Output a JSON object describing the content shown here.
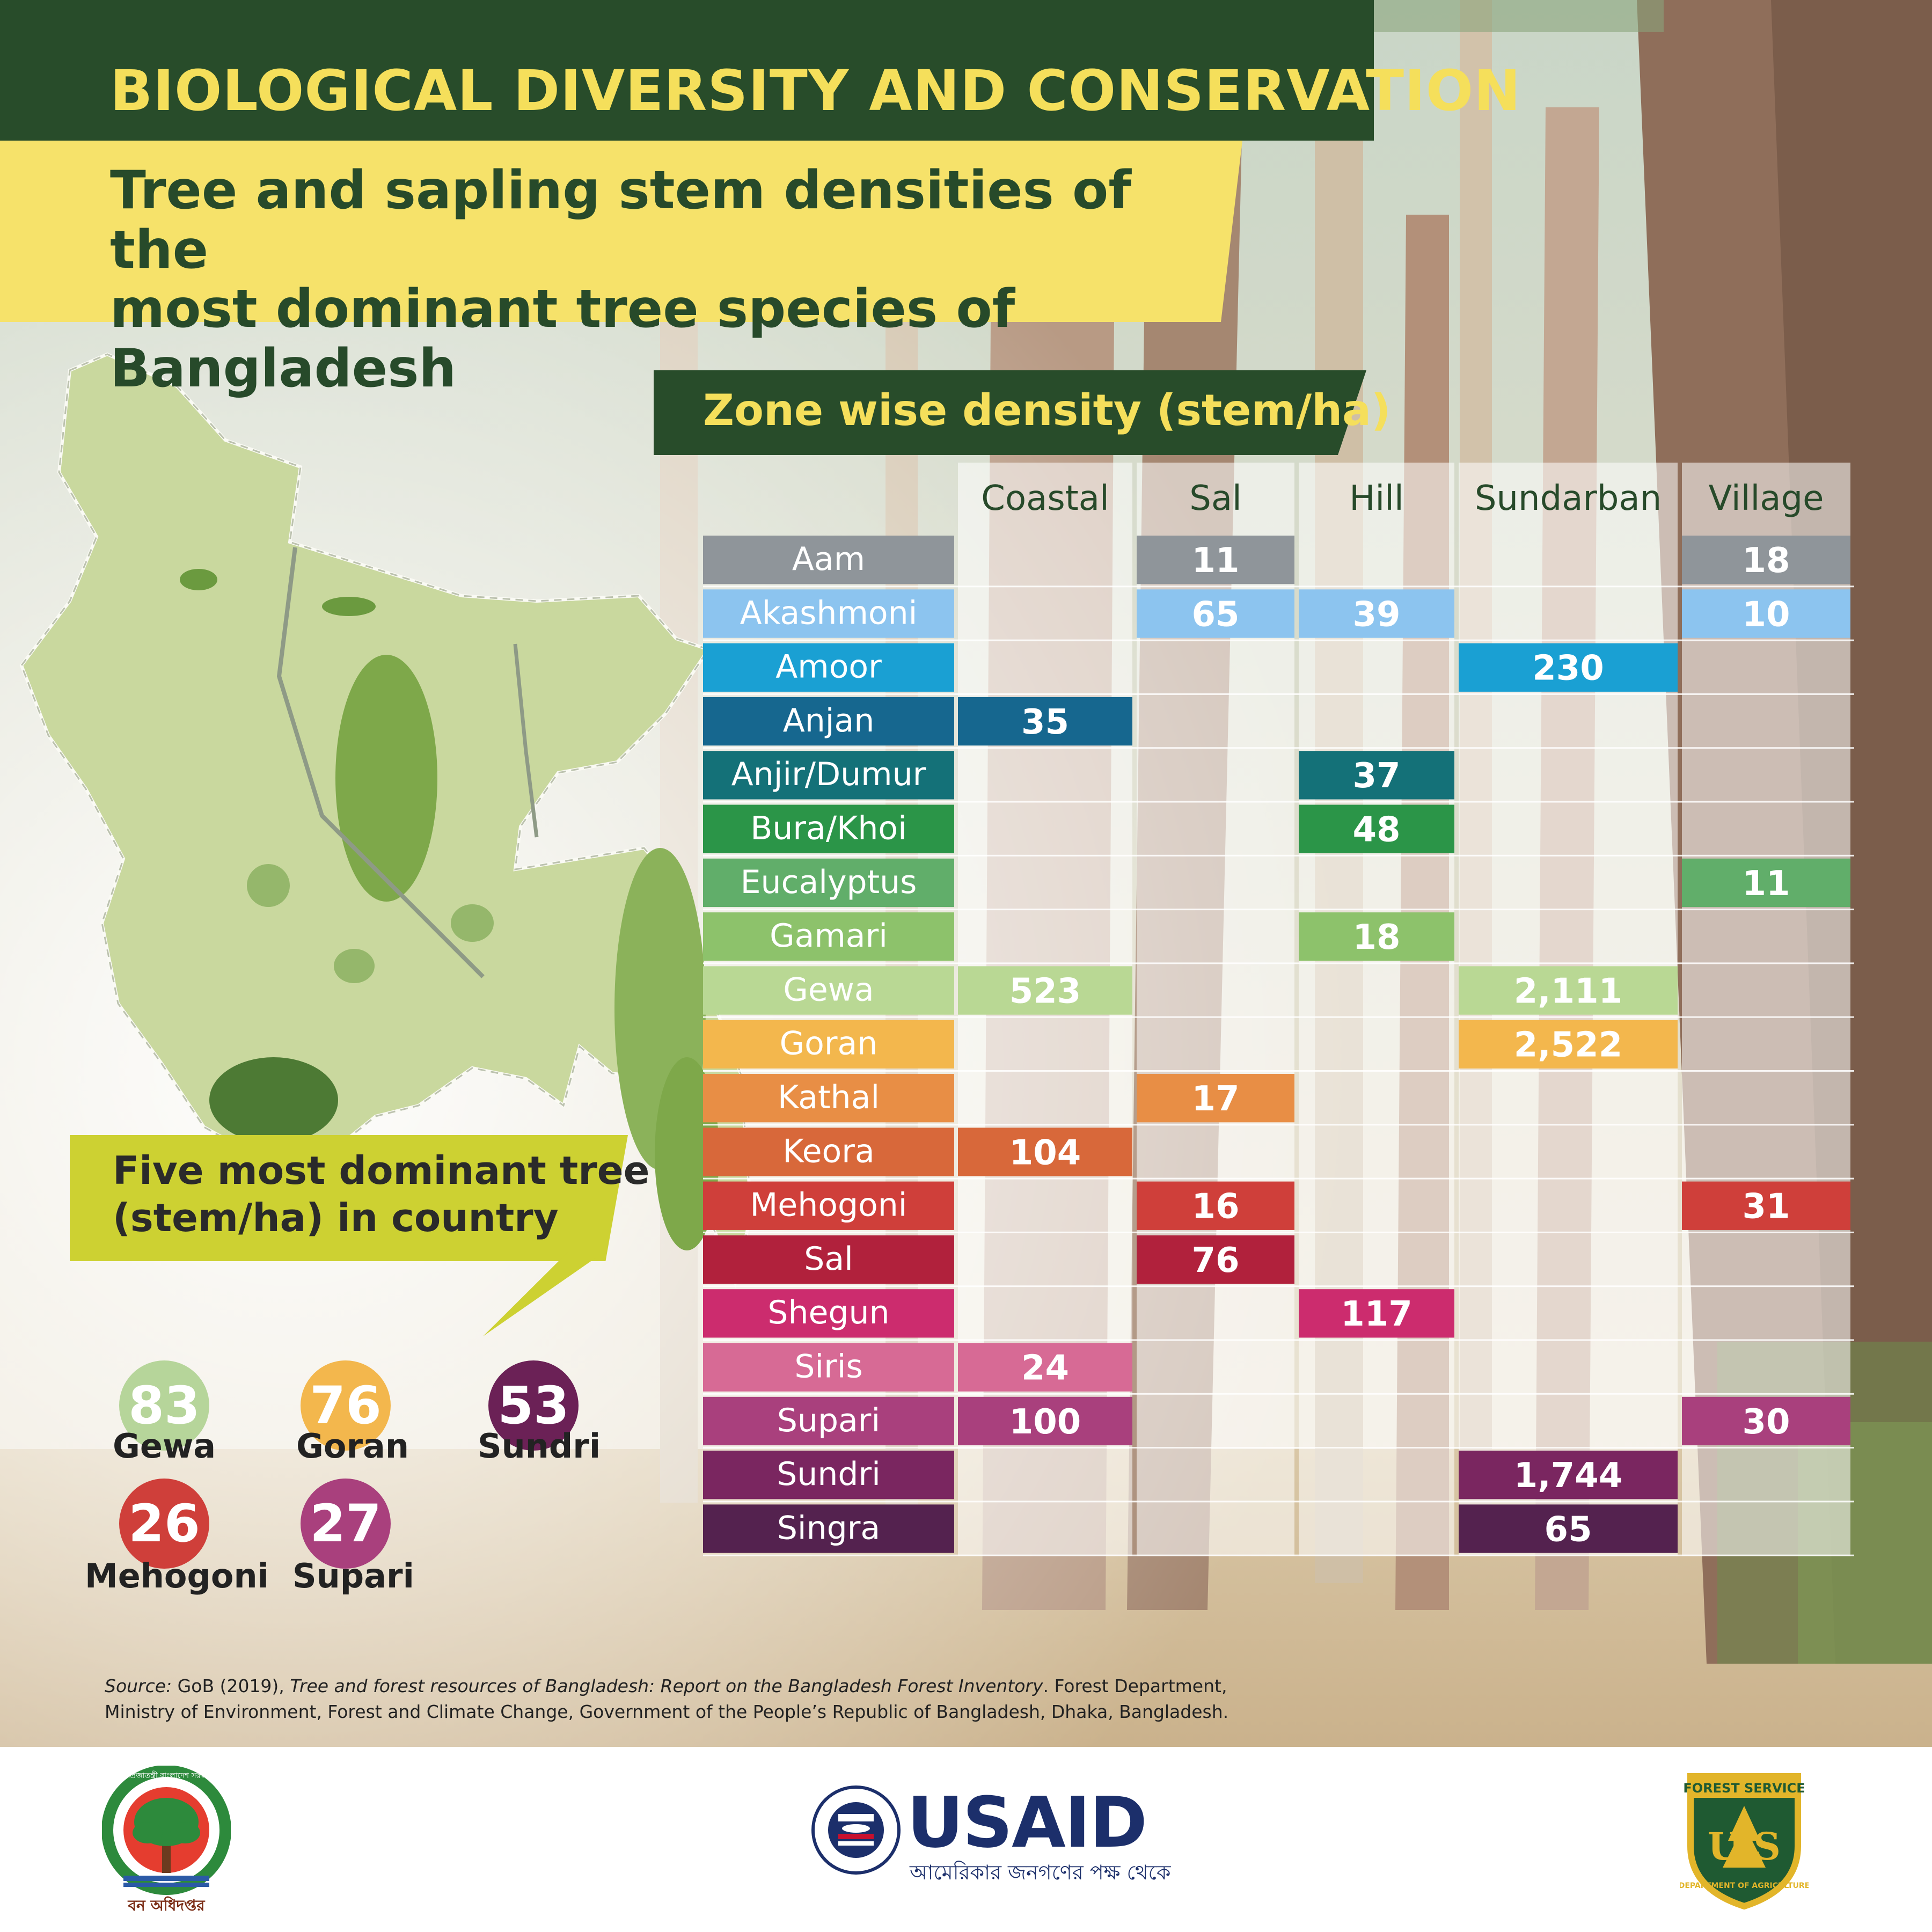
{
  "header": {
    "title": "BIOLOGICAL DIVERSITY AND CONSERVATION",
    "subtitle_line1": "Tree and sapling stem densities of the",
    "subtitle_line2": "most dominant tree species of Bangladesh"
  },
  "colors": {
    "dark_green": "#284c2a",
    "yellow": "#f6e26a",
    "lime": "#cdd132"
  },
  "chart_data": {
    "type": "table",
    "title": "Zone wise density (stem/ha)",
    "columns": [
      "Coastal",
      "Sal",
      "Hill",
      "Sundarban",
      "Village"
    ],
    "rows": [
      {
        "name": "Aam",
        "color": "#8f959a",
        "values": [
          "",
          "11",
          "",
          "",
          "18"
        ]
      },
      {
        "name": "Akashmoni",
        "color": "#8cc4ef",
        "values": [
          "",
          "65",
          "39",
          "",
          "10"
        ]
      },
      {
        "name": "Amoor",
        "color": "#1aa0d3",
        "values": [
          "",
          "",
          "",
          "230",
          ""
        ]
      },
      {
        "name": "Anjan",
        "color": "#16678f",
        "values": [
          "35",
          "",
          "",
          "",
          ""
        ]
      },
      {
        "name": "Anjir/Dumur",
        "color": "#147178",
        "values": [
          "",
          "",
          "37",
          "",
          ""
        ]
      },
      {
        "name": "Bura/Khoi",
        "color": "#2b9548",
        "values": [
          "",
          "",
          "48",
          "",
          ""
        ]
      },
      {
        "name": "Eucalyptus",
        "color": "#61ae6a",
        "values": [
          "",
          "",
          "",
          "",
          "11"
        ]
      },
      {
        "name": "Gamari",
        "color": "#8dc26b",
        "values": [
          "",
          "",
          "18",
          "",
          ""
        ]
      },
      {
        "name": "Gewa",
        "color": "#b9d894",
        "values": [
          "523",
          "",
          "",
          "2,111",
          ""
        ]
      },
      {
        "name": "Goran",
        "color": "#f3b74d",
        "values": [
          "",
          "",
          "",
          "2,522",
          ""
        ]
      },
      {
        "name": "Kathal",
        "color": "#e88e45",
        "values": [
          "",
          "17",
          "",
          "",
          ""
        ]
      },
      {
        "name": "Keora",
        "color": "#d8683a",
        "values": [
          "104",
          "",
          "",
          "",
          ""
        ]
      },
      {
        "name": "Mehogoni",
        "color": "#cf3f3a",
        "values": [
          "",
          "16",
          "",
          "",
          "31"
        ]
      },
      {
        "name": "Sal",
        "color": "#b1213c",
        "values": [
          "",
          "76",
          "",
          "",
          ""
        ]
      },
      {
        "name": "Shegun",
        "color": "#cc2c6e",
        "values": [
          "",
          "",
          "117",
          "",
          ""
        ]
      },
      {
        "name": "Siris",
        "color": "#d76a95",
        "values": [
          "24",
          "",
          "",
          "",
          ""
        ]
      },
      {
        "name": "Supari",
        "color": "#a9407d",
        "values": [
          "100",
          "",
          "",
          "",
          "30"
        ]
      },
      {
        "name": "Sundri",
        "color": "#7a2660",
        "values": [
          "",
          "",
          "",
          "1,744",
          ""
        ]
      },
      {
        "name": "Singra",
        "color": "#54224f",
        "values": [
          "",
          "",
          "",
          "65",
          ""
        ]
      }
    ]
  },
  "dominant": {
    "title_line1": "Five most dominant tree",
    "title_line2": "(stem/ha) in country",
    "items": [
      {
        "value": "83",
        "name": "Gewa",
        "color": "#b6d59a"
      },
      {
        "value": "76",
        "name": "Goran",
        "color": "#f3b74d"
      },
      {
        "value": "53",
        "name": "Sundri",
        "color": "#6b2156"
      },
      {
        "value": "26",
        "name": "Mehogoni",
        "color": "#cf3f3a"
      },
      {
        "value": "27",
        "name": "Supari",
        "color": "#a9407d"
      }
    ]
  },
  "source": {
    "label": "Source:",
    "part1": " GoB (2019), ",
    "report": "Tree and forest resources of Bangladesh: Report on the Bangladesh Forest Inventory",
    "part2": ". Forest Department,",
    "line2": "Ministry of Environment, Forest and Climate Change, Government of the People’s Republic of Bangladesh, Dhaka, Bangladesh."
  },
  "logos": {
    "usaid_word": "USAID",
    "usaid_tagline": "আমেরিকার জনগণের পক্ষ থেকে",
    "usaid_seal_text": "UNITED STATES AGENCY INTERNATIONAL DEVELOPMENT",
    "forest_service_top": "FOREST SERVICE",
    "forest_service_letters": "U S",
    "forest_service_bottom": "DEPARTMENT OF AGRICULTURE",
    "bd_forest_label": "বন অধিদপ্তর",
    "bd_forest_ring": "গণপ্রজাতন্ত্রী বাংলাদেশ সরকার"
  }
}
